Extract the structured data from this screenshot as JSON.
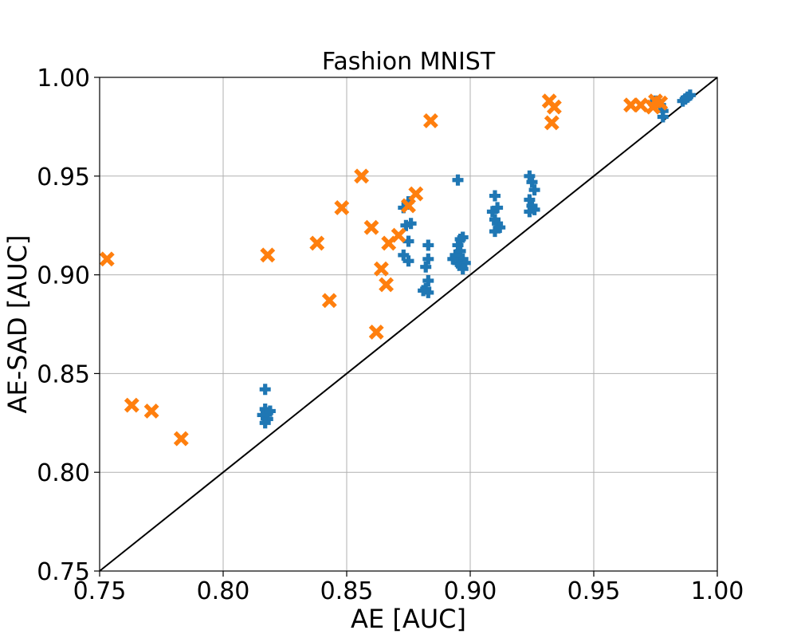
{
  "chart_data": {
    "type": "scatter",
    "title": "Fashion MNIST",
    "xlabel": "AE [AUC]",
    "ylabel": "AE-SAD [AUC]",
    "xlim": [
      0.75,
      1.0
    ],
    "ylim": [
      0.75,
      1.0
    ],
    "xticks": [
      "0.75",
      "0.80",
      "0.85",
      "0.90",
      "0.95",
      "1.00"
    ],
    "yticks": [
      "0.75",
      "0.80",
      "0.85",
      "0.90",
      "0.95",
      "1.00"
    ],
    "grid": true,
    "reference_line": "y = x",
    "colors": {
      "plus": "#1f77b4",
      "cross": "#ff7f0e",
      "diagonal": "#000000"
    },
    "series": [
      {
        "marker": "plus",
        "color": "#1f77b4",
        "points": [
          [
            0.817,
            0.842
          ],
          [
            0.817,
            0.832
          ],
          [
            0.818,
            0.83
          ],
          [
            0.816,
            0.829
          ],
          [
            0.818,
            0.827
          ],
          [
            0.817,
            0.825
          ],
          [
            0.819,
            0.831
          ],
          [
            0.873,
            0.934
          ],
          [
            0.875,
            0.937
          ],
          [
            0.876,
            0.926
          ],
          [
            0.874,
            0.925
          ],
          [
            0.875,
            0.917
          ],
          [
            0.873,
            0.91
          ],
          [
            0.875,
            0.907
          ],
          [
            0.883,
            0.915
          ],
          [
            0.883,
            0.908
          ],
          [
            0.882,
            0.904
          ],
          [
            0.883,
            0.897
          ],
          [
            0.882,
            0.893
          ],
          [
            0.883,
            0.891
          ],
          [
            0.881,
            0.892
          ],
          [
            0.895,
            0.948
          ],
          [
            0.896,
            0.918
          ],
          [
            0.897,
            0.919
          ],
          [
            0.895,
            0.915
          ],
          [
            0.896,
            0.912
          ],
          [
            0.894,
            0.91
          ],
          [
            0.897,
            0.908
          ],
          [
            0.895,
            0.906
          ],
          [
            0.896,
            0.905
          ],
          [
            0.898,
            0.906
          ],
          [
            0.897,
            0.903
          ],
          [
            0.893,
            0.908
          ],
          [
            0.91,
            0.94
          ],
          [
            0.911,
            0.934
          ],
          [
            0.909,
            0.932
          ],
          [
            0.91,
            0.928
          ],
          [
            0.911,
            0.926
          ],
          [
            0.912,
            0.924
          ],
          [
            0.91,
            0.922
          ],
          [
            0.924,
            0.95
          ],
          [
            0.925,
            0.947
          ],
          [
            0.926,
            0.943
          ],
          [
            0.924,
            0.938
          ],
          [
            0.925,
            0.935
          ],
          [
            0.926,
            0.933
          ],
          [
            0.924,
            0.932
          ],
          [
            0.975,
            0.988
          ],
          [
            0.977,
            0.986
          ],
          [
            0.978,
            0.983
          ],
          [
            0.978,
            0.98
          ],
          [
            0.986,
            0.988
          ],
          [
            0.987,
            0.989
          ],
          [
            0.988,
            0.99
          ],
          [
            0.989,
            0.991
          ]
        ]
      },
      {
        "marker": "cross",
        "color": "#ff7f0e",
        "points": [
          [
            0.753,
            0.908
          ],
          [
            0.763,
            0.834
          ],
          [
            0.771,
            0.831
          ],
          [
            0.783,
            0.817
          ],
          [
            0.818,
            0.91
          ],
          [
            0.838,
            0.916
          ],
          [
            0.843,
            0.887
          ],
          [
            0.848,
            0.934
          ],
          [
            0.856,
            0.95
          ],
          [
            0.86,
            0.924
          ],
          [
            0.862,
            0.871
          ],
          [
            0.864,
            0.903
          ],
          [
            0.866,
            0.895
          ],
          [
            0.867,
            0.916
          ],
          [
            0.871,
            0.92
          ],
          [
            0.875,
            0.935
          ],
          [
            0.878,
            0.941
          ],
          [
            0.884,
            0.978
          ],
          [
            0.932,
            0.988
          ],
          [
            0.934,
            0.985
          ],
          [
            0.933,
            0.977
          ],
          [
            0.965,
            0.986
          ],
          [
            0.969,
            0.986
          ],
          [
            0.974,
            0.985
          ],
          [
            0.975,
            0.988
          ],
          [
            0.977,
            0.987
          ]
        ]
      }
    ]
  }
}
